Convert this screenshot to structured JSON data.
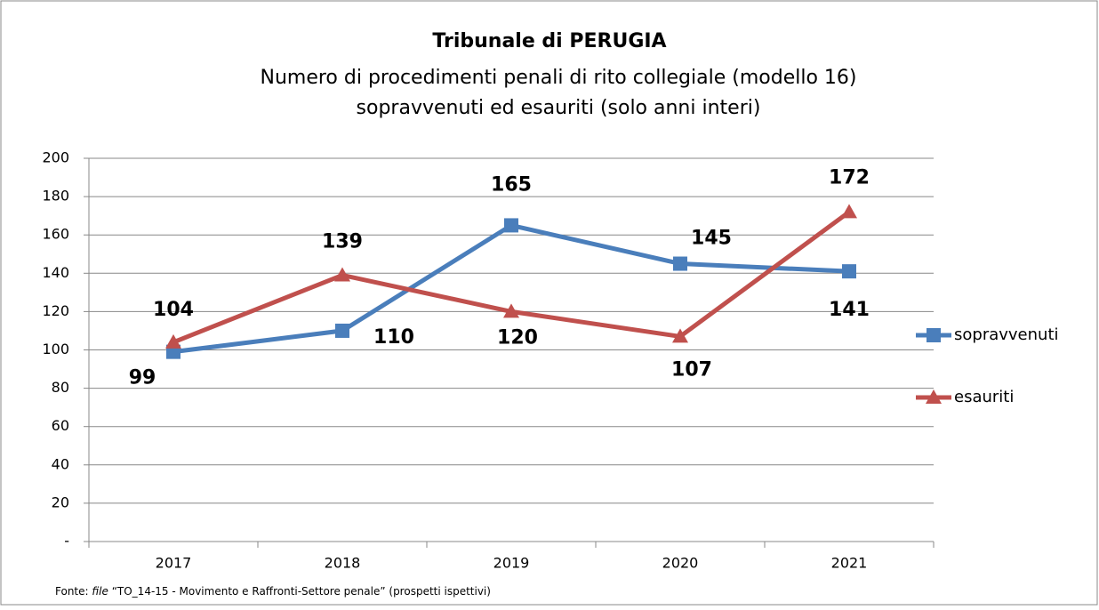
{
  "chart_data": {
    "type": "line",
    "title": "Tribunale di PERUGIA",
    "subtitle": [
      "Numero di procedimenti penali di rito collegiale (modello 16)",
      "sopravvenuti ed esauriti (solo anni interi)"
    ],
    "categories": [
      "2017",
      "2018",
      "2019",
      "2020",
      "2021"
    ],
    "series": [
      {
        "name": "sopravvenuti",
        "color": "#4a7ebb",
        "label_color": "#1f6fb5",
        "marker": "square",
        "values": [
          99,
          110,
          165,
          145,
          141
        ]
      },
      {
        "name": "esauriti",
        "color": "#c0504d",
        "label_color": "#c00000",
        "marker": "triangle",
        "values": [
          104,
          139,
          120,
          107,
          172
        ]
      }
    ],
    "ylim": [
      0,
      200
    ],
    "yticks": [
      {
        "value": 0,
        "label": "-"
      },
      20,
      40,
      60,
      80,
      100,
      120,
      140,
      160,
      180,
      200
    ],
    "grid": true,
    "legend": "right",
    "source": {
      "prefix": "Fonte:",
      "italic": "file",
      "rest": "“TO_14-15 - Movimento e Raffronti-Settore penale” (prospetti ispettivi)"
    }
  }
}
